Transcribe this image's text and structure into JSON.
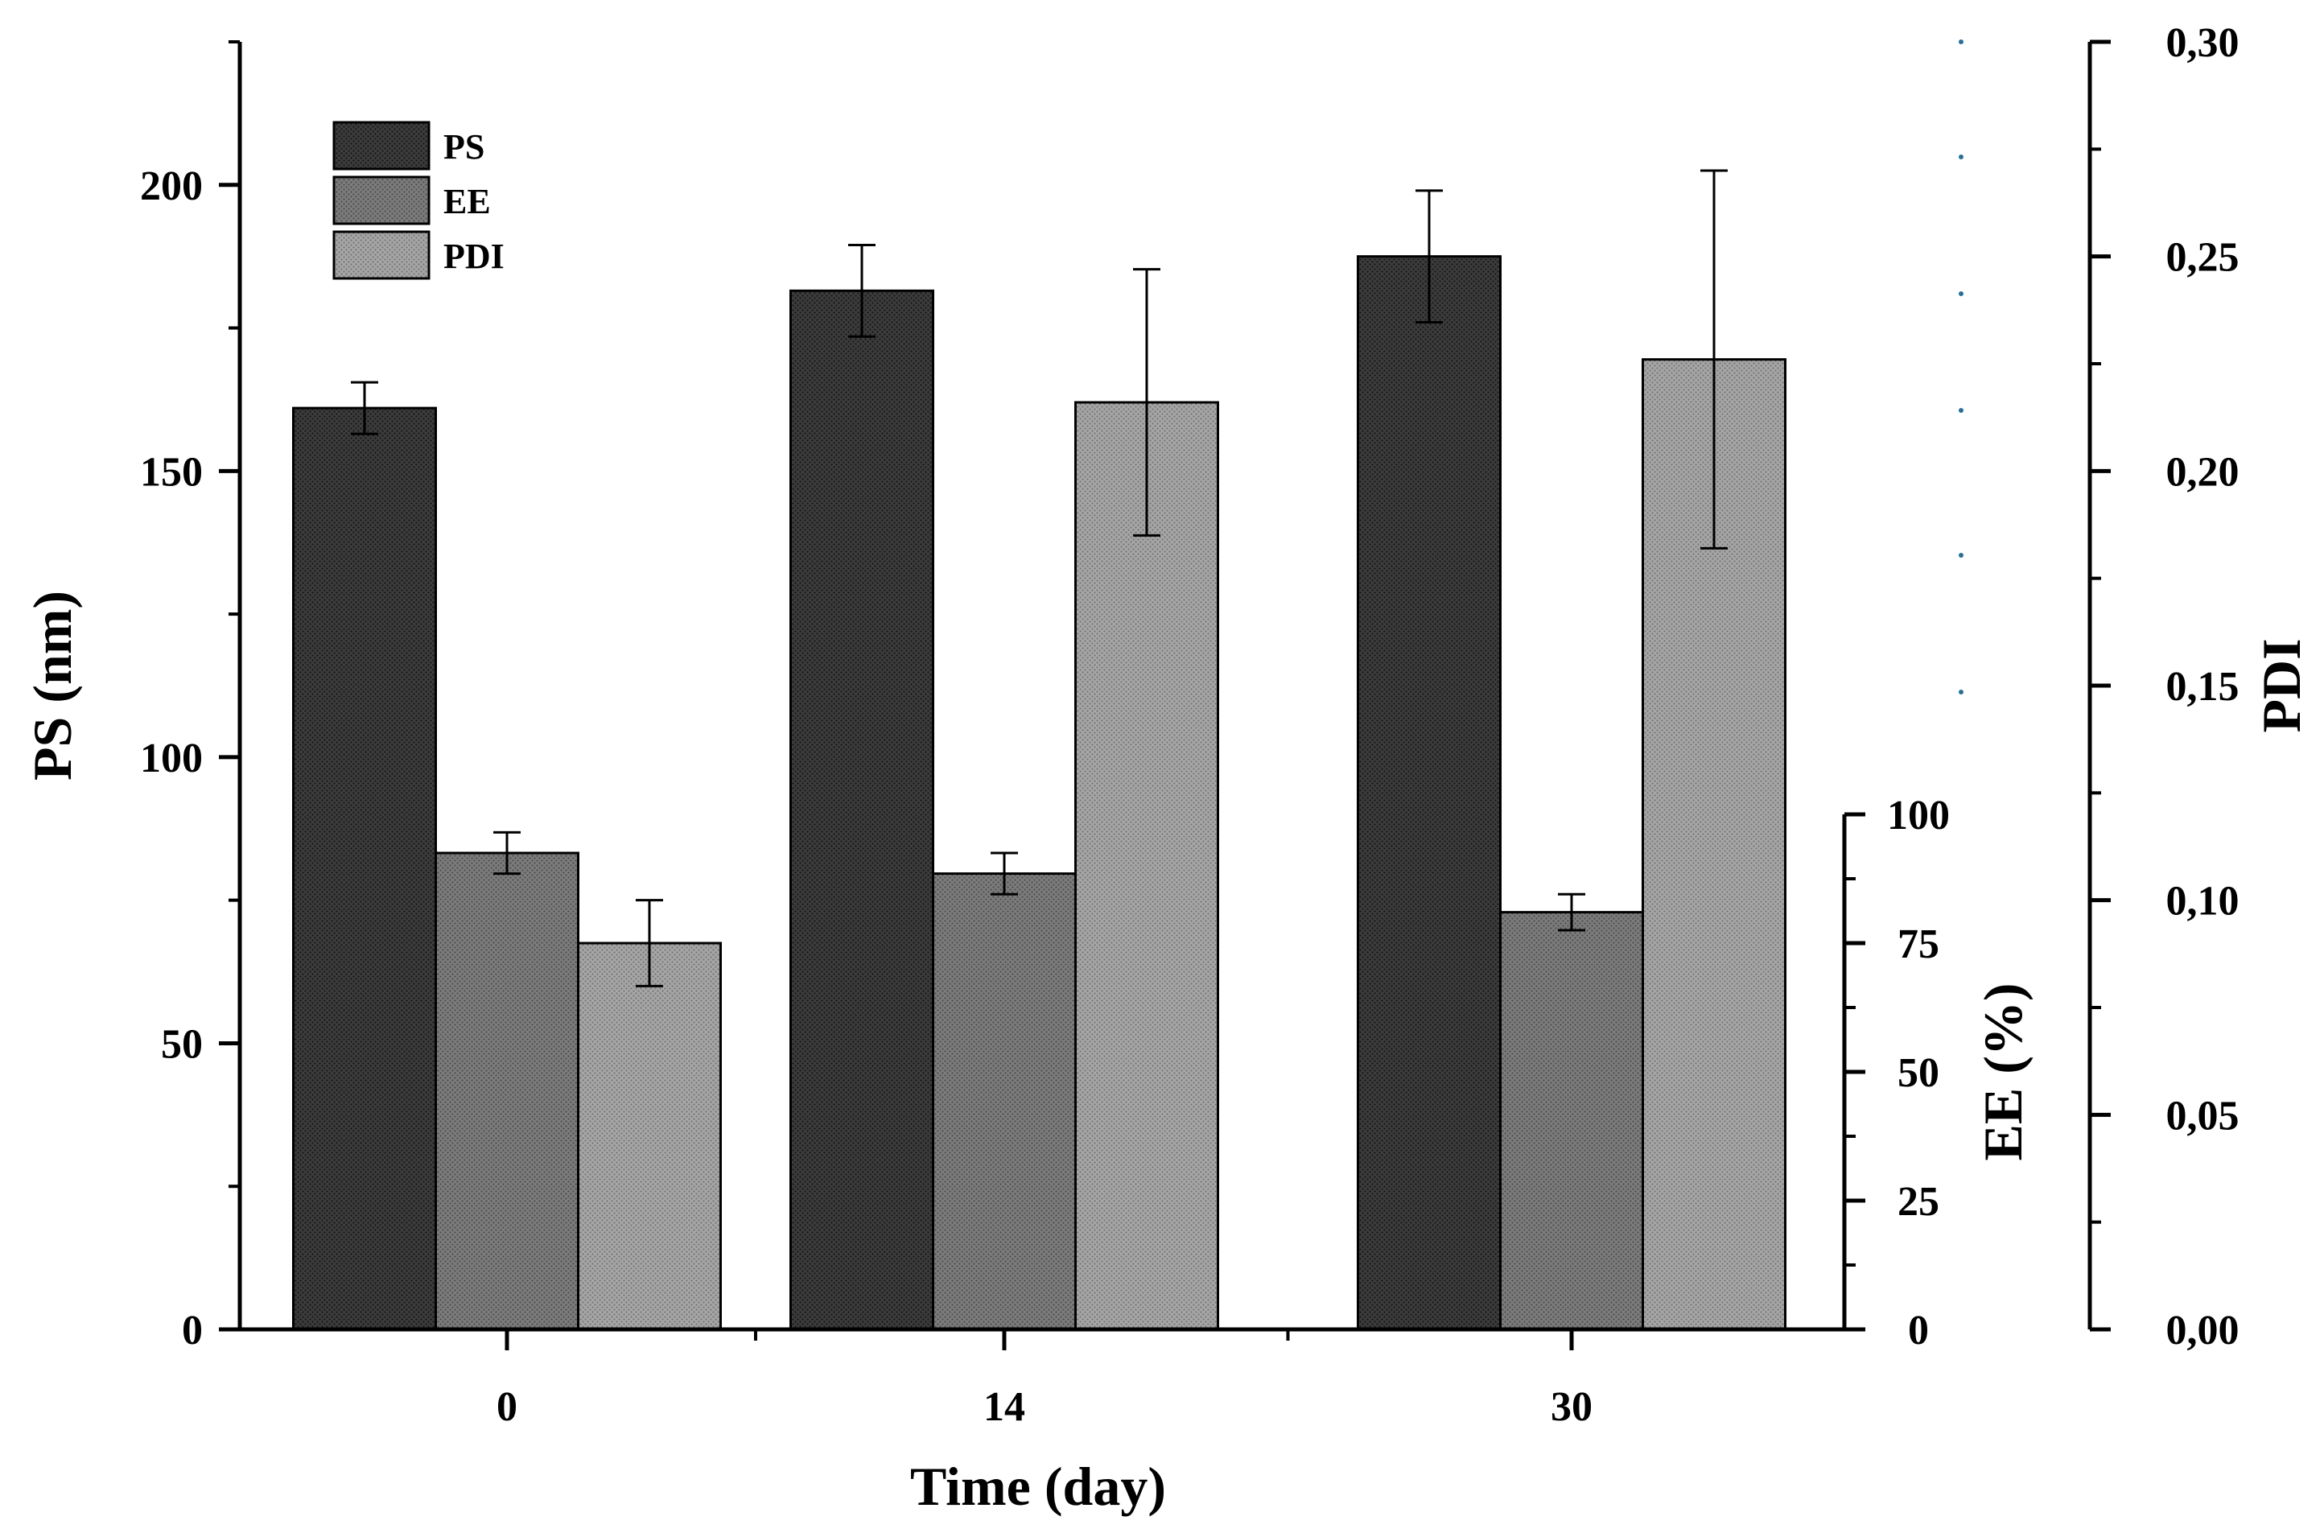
{
  "chart_data": {
    "type": "bar",
    "categories": [
      "0",
      "14",
      "30"
    ],
    "xlabel": "Time (day)",
    "series": [
      {
        "name": "PS",
        "axis": "PS",
        "values": [
          161,
          181.5,
          187.5
        ],
        "errors": [
          4.5,
          8,
          11.5
        ],
        "color": "#333333"
      },
      {
        "name": "EE",
        "axis": "EE",
        "values": [
          92.5,
          88.5,
          81
        ],
        "errors": [
          4,
          4,
          3.5
        ],
        "color": "#727272"
      },
      {
        "name": "PDI",
        "axis": "PDI",
        "values": [
          0.09,
          0.216,
          0.226
        ],
        "errors": [
          0.01,
          0.031,
          0.044
        ],
        "color": "#9b9b9b"
      }
    ],
    "axes": {
      "PS": {
        "label": "PS (nm)",
        "ylim": [
          0,
          225
        ],
        "ticks": [
          "0",
          "50",
          "100",
          "150",
          "200"
        ]
      },
      "EE": {
        "label": "EE (%)",
        "ylim": [
          0,
          100
        ],
        "ticks": [
          "0",
          "25",
          "50",
          "75",
          "100"
        ]
      },
      "PDI": {
        "label": "PDI",
        "ylim": [
          0,
          0.3
        ],
        "ticks": [
          "0,00",
          "0,05",
          "0,10",
          "0,15",
          "0,20",
          "0,25",
          "0,30"
        ]
      }
    },
    "legend": {
      "entries": [
        "PS",
        "EE",
        "PDI"
      ],
      "position": "top-left"
    },
    "grid": false
  }
}
